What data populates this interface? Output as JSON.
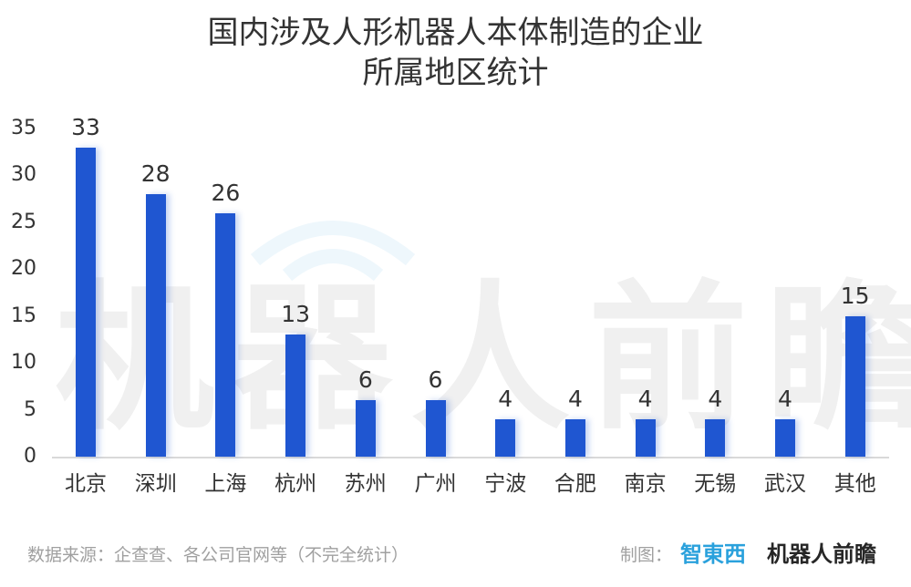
{
  "chart_data": {
    "type": "bar",
    "title": "国内涉及人形机器人本体制造的企业所属地区统计",
    "title_lines": [
      "国内涉及人形机器人本体制造的企业",
      "所属地区统计"
    ],
    "categories": [
      "北京",
      "深圳",
      "上海",
      "杭州",
      "苏州",
      "广州",
      "宁波",
      "合肥",
      "南京",
      "无锡",
      "武汉",
      "其他"
    ],
    "values": [
      33,
      28,
      26,
      13,
      6,
      6,
      4,
      4,
      4,
      4,
      4,
      15
    ],
    "xlabel": "",
    "ylabel": "",
    "ylim": [
      0,
      35
    ],
    "yticks": [
      "0",
      "5",
      "10",
      "15",
      "20",
      "25",
      "30",
      "35"
    ],
    "grid": false,
    "legend": null,
    "bar_color": "#1f56d1",
    "data_labels": true
  },
  "watermark": {
    "text": "机器人前瞻"
  },
  "footer": {
    "source": "数据来源：企查查、各公司官网等（不完全统计）",
    "credit_label": "制图：",
    "logo_1": "智東西",
    "logo_2": "机器人前瞻"
  }
}
